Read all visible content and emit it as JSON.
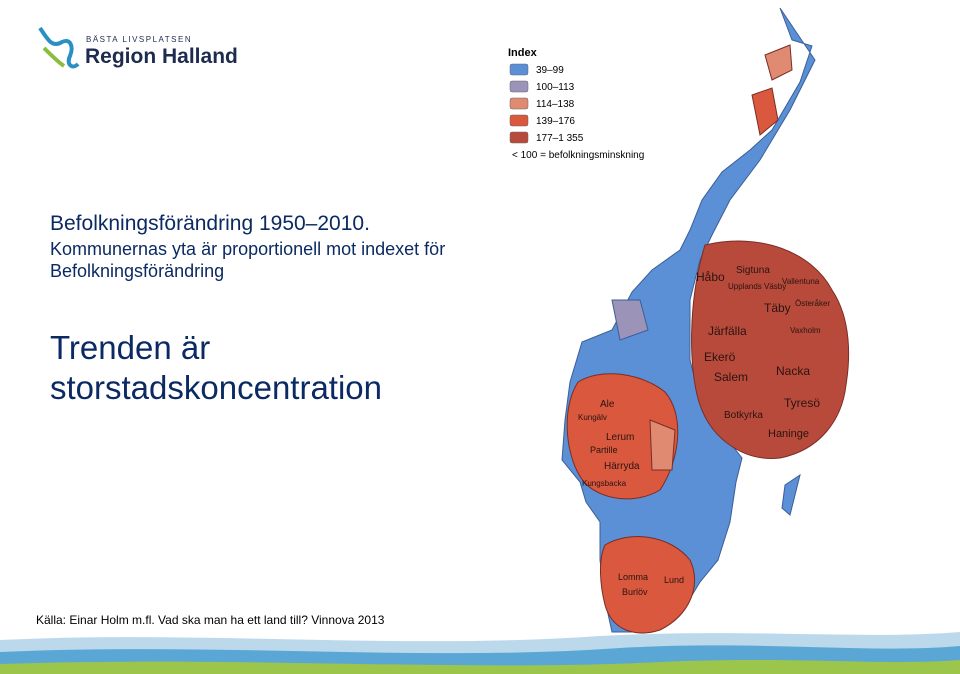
{
  "logo": {
    "tagline": "BÄSTA LIVSPLATSEN",
    "name": "Region Halland"
  },
  "title": "Befolkningsförändring 1950–2010.",
  "subtitle": "Kommunernas yta är proportionell mot indexet för Befolkningsförändring",
  "heading": "Trenden är storstadskoncentration",
  "source": "Källa: Einar Holm m.fl. Vad ska man ha ett land till? Vinnova 2013",
  "legend": {
    "title": "Index",
    "items": [
      {
        "label": "39–99",
        "color": "#5b8fd6"
      },
      {
        "label": "100–113",
        "color": "#9c93b8"
      },
      {
        "label": "114–138",
        "color": "#e08a72"
      },
      {
        "label": "139–176",
        "color": "#d9583e"
      },
      {
        "label": "177–1 355",
        "color": "#b84a3c"
      }
    ],
    "note": "< 100 = befolkningsminskning"
  },
  "map_labels": [
    "Håbo",
    "Sigtuna",
    "Vallentuna",
    "Upplands Väsby",
    "Täby",
    "Österåker",
    "Järfälla",
    "Vaxholm",
    "Ekerö",
    "Salem",
    "Nacka",
    "Tyresö",
    "Botkyrka",
    "Haninge",
    "Ale",
    "Kungälv",
    "Lerum",
    "Partille",
    "Härryda",
    "Kungsbacka",
    "Lomma",
    "Burlöv",
    "Lund"
  ]
}
